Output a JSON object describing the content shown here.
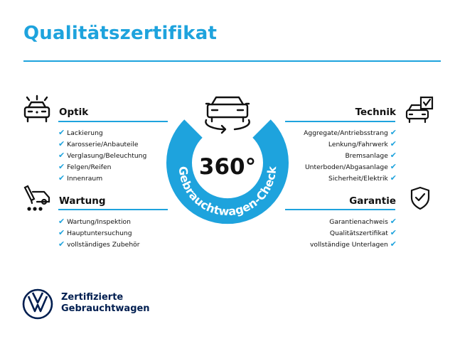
{
  "title": "Qualitätszertifikat",
  "accent": "#1ea3dd",
  "center": {
    "value": "360°",
    "ring_label": "Gebrauchtwagen-Check",
    "icon": "car-rotate-icon"
  },
  "sections": {
    "optik": {
      "title": "Optik",
      "icon": "car-lights-icon",
      "items": [
        "Lackierung",
        "Karosserie/Anbauteile",
        "Verglasung/Beleuchtung",
        "Felgen/Reifen",
        "Innenraum"
      ]
    },
    "wartung": {
      "title": "Wartung",
      "icon": "service-van-icon",
      "items": [
        "Wartung/Inspektion",
        "Hauptuntersuchung",
        "vollständiges Zubehör"
      ]
    },
    "technik": {
      "title": "Technik",
      "icon": "car-checklist-icon",
      "items": [
        "Aggregate/Antriebsstrang",
        "Lenkung/Fahrwerk",
        "Bremsanlage",
        "Unterboden/Abgasanlage",
        "Sicherheit/Elektrik"
      ]
    },
    "garantie": {
      "title": "Garantie",
      "icon": "shield-check-icon",
      "items": [
        "Garantienachweis",
        "Qualitätszertifikat",
        "vollständige Unterlagen"
      ]
    }
  },
  "check": "✔",
  "brand": {
    "line1": "Zertifizierte",
    "line2": "Gebrauchtwagen",
    "logo": "vw-logo"
  }
}
